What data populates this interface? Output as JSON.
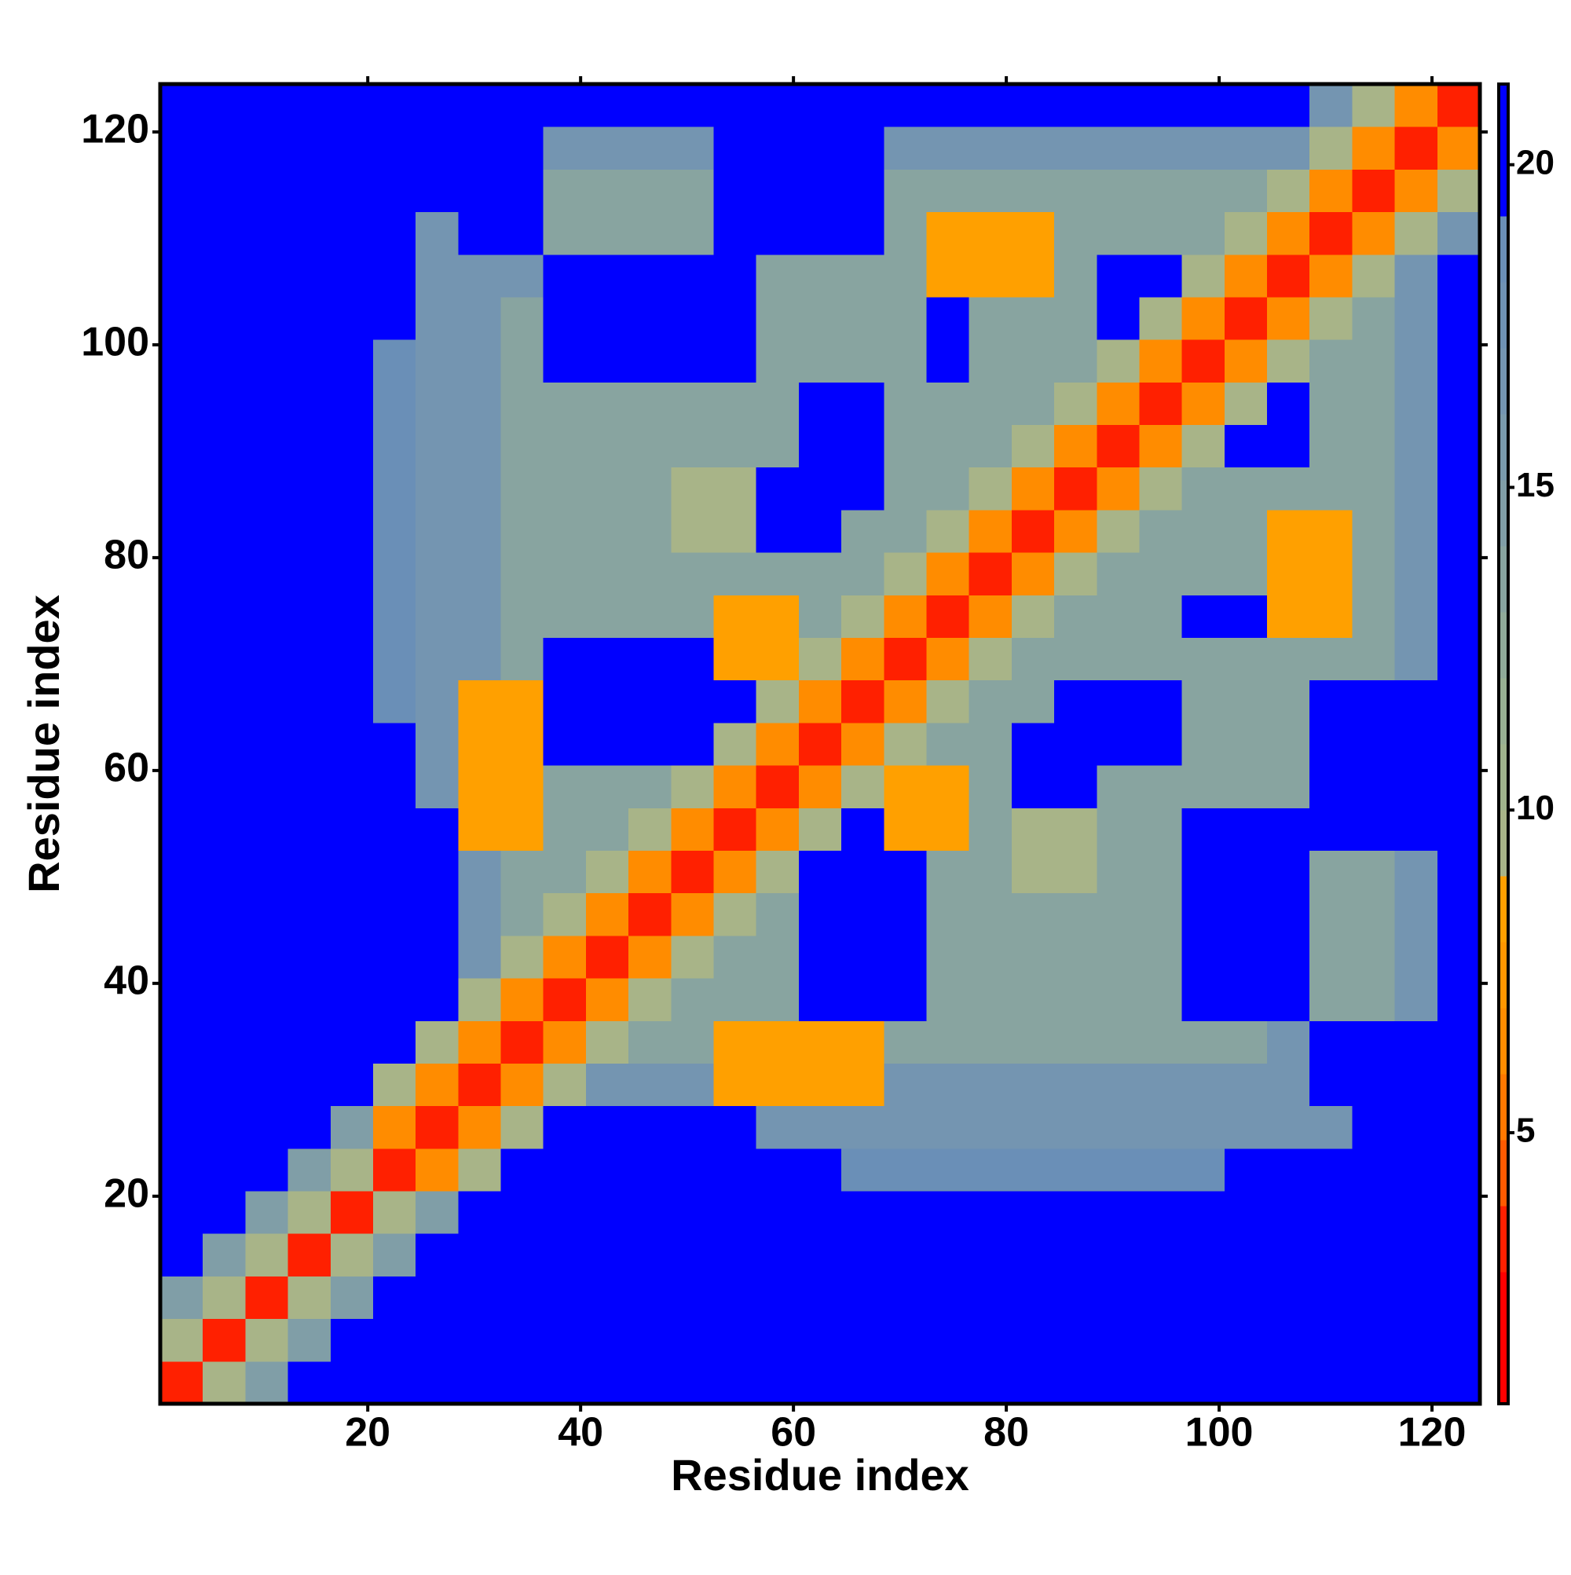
{
  "chart_data": {
    "type": "heatmap",
    "x_label": "Residue index",
    "y_label": "Residue index",
    "xlim": [
      0.5,
      124.5
    ],
    "ylim": [
      0.5,
      124.5
    ],
    "xticks": [
      20,
      40,
      60,
      80,
      100,
      120
    ],
    "yticks": [
      20,
      40,
      60,
      80,
      100,
      120
    ],
    "xbins": [
      0.5,
      4.5,
      8.5,
      12.5,
      16.5,
      20.5,
      24.5,
      28.5,
      32.5,
      36.5,
      40.5,
      44.5,
      48.5,
      52.5,
      56.5,
      60.5,
      64.5,
      68.5,
      72.5,
      76.5,
      80.5,
      84.5,
      88.5,
      92.5,
      96.5,
      100.5,
      104.5,
      108.5,
      112.5,
      116.5,
      120.5,
      124.5
    ],
    "ybins": [
      0.5,
      4.5,
      8.5,
      12.5,
      16.5,
      20.5,
      24.5,
      28.5,
      32.5,
      36.5,
      40.5,
      44.5,
      48.5,
      52.5,
      56.5,
      60.5,
      64.5,
      68.5,
      72.5,
      76.5,
      80.5,
      84.5,
      88.5,
      92.5,
      96.5,
      100.5,
      104.5,
      108.5,
      112.5,
      116.5,
      120.5,
      124.5
    ],
    "values": [
      [
        3,
        9,
        15,
        22,
        22,
        22,
        22,
        22,
        22,
        22,
        22,
        22,
        22,
        22,
        22,
        22,
        22,
        22,
        22,
        22,
        22,
        22,
        22,
        22,
        22,
        22,
        22,
        22,
        22,
        22,
        22
      ],
      [
        9,
        3,
        9,
        15,
        22,
        22,
        22,
        22,
        22,
        22,
        22,
        22,
        22,
        22,
        22,
        22,
        22,
        22,
        22,
        22,
        22,
        22,
        22,
        22,
        22,
        22,
        22,
        22,
        22,
        22,
        22
      ],
      [
        15,
        9,
        3,
        9,
        15,
        22,
        22,
        22,
        22,
        22,
        22,
        22,
        22,
        22,
        22,
        22,
        22,
        22,
        22,
        22,
        22,
        22,
        22,
        22,
        22,
        22,
        22,
        22,
        22,
        22,
        22
      ],
      [
        22,
        15,
        9,
        3,
        9,
        15,
        22,
        22,
        22,
        22,
        22,
        22,
        22,
        22,
        22,
        22,
        22,
        22,
        22,
        22,
        22,
        22,
        22,
        22,
        22,
        22,
        22,
        22,
        22,
        22,
        22
      ],
      [
        22,
        22,
        15,
        9,
        3,
        9,
        15,
        22,
        22,
        22,
        22,
        22,
        22,
        22,
        22,
        22,
        22,
        22,
        22,
        22,
        22,
        22,
        22,
        22,
        22,
        22,
        22,
        22,
        22,
        22,
        22
      ],
      [
        22,
        22,
        22,
        15,
        9,
        3,
        6,
        10,
        22,
        22,
        22,
        22,
        22,
        22,
        22,
        22,
        19,
        19,
        19,
        19,
        19,
        19,
        19,
        19,
        19,
        22,
        22,
        22,
        22,
        22,
        22
      ],
      [
        22,
        22,
        22,
        22,
        15,
        6,
        3,
        6,
        10,
        22,
        22,
        22,
        22,
        22,
        17,
        17,
        17,
        17,
        17,
        17,
        17,
        17,
        17,
        17,
        17,
        17,
        17,
        17,
        22,
        22,
        22
      ],
      [
        22,
        22,
        22,
        22,
        22,
        10,
        6,
        3,
        6,
        10,
        17,
        17,
        17,
        8,
        8,
        8,
        8,
        17,
        17,
        17,
        17,
        17,
        17,
        17,
        17,
        17,
        17,
        22,
        22,
        22,
        22
      ],
      [
        22,
        22,
        22,
        22,
        22,
        22,
        10,
        6,
        3,
        6,
        10,
        14,
        14,
        8,
        8,
        8,
        8,
        14,
        14,
        14,
        14,
        14,
        14,
        14,
        14,
        14,
        17,
        22,
        22,
        22,
        22
      ],
      [
        22,
        22,
        22,
        22,
        22,
        22,
        22,
        10,
        6,
        3,
        6,
        10,
        14,
        14,
        14,
        22,
        22,
        22,
        14,
        14,
        14,
        14,
        14,
        14,
        22,
        22,
        22,
        14,
        14,
        17,
        22
      ],
      [
        22,
        22,
        22,
        22,
        22,
        22,
        22,
        17,
        10,
        6,
        3,
        6,
        10,
        14,
        14,
        22,
        22,
        22,
        14,
        14,
        14,
        14,
        14,
        14,
        22,
        22,
        22,
        14,
        14,
        17,
        22
      ],
      [
        22,
        22,
        22,
        22,
        22,
        22,
        22,
        17,
        14,
        10,
        6,
        3,
        6,
        10,
        14,
        22,
        22,
        22,
        14,
        14,
        14,
        14,
        14,
        14,
        22,
        22,
        22,
        14,
        14,
        17,
        22
      ],
      [
        22,
        22,
        22,
        22,
        22,
        22,
        22,
        17,
        14,
        14,
        10,
        6,
        3,
        6,
        10,
        22,
        22,
        22,
        14,
        14,
        9,
        9,
        14,
        14,
        22,
        22,
        22,
        14,
        14,
        17,
        22
      ],
      [
        22,
        22,
        22,
        22,
        22,
        22,
        22,
        8,
        8,
        14,
        14,
        10,
        6,
        3,
        6,
        10,
        22,
        8,
        8,
        14,
        9,
        9,
        14,
        14,
        22,
        22,
        22,
        22,
        22,
        22,
        22
      ],
      [
        22,
        22,
        22,
        22,
        22,
        22,
        17,
        8,
        8,
        14,
        14,
        14,
        10,
        6,
        3,
        6,
        10,
        8,
        8,
        14,
        22,
        22,
        14,
        14,
        14,
        14,
        14,
        22,
        22,
        22,
        22
      ],
      [
        22,
        22,
        22,
        22,
        22,
        22,
        17,
        8,
        8,
        22,
        22,
        22,
        22,
        10,
        6,
        3,
        6,
        10,
        14,
        14,
        22,
        22,
        22,
        22,
        14,
        14,
        14,
        22,
        22,
        22,
        22
      ],
      [
        22,
        22,
        22,
        22,
        22,
        19,
        17,
        8,
        8,
        22,
        22,
        22,
        22,
        22,
        10,
        6,
        3,
        6,
        10,
        14,
        14,
        22,
        22,
        22,
        14,
        14,
        14,
        22,
        22,
        22,
        22
      ],
      [
        22,
        22,
        22,
        22,
        22,
        19,
        17,
        17,
        14,
        22,
        22,
        22,
        22,
        8,
        8,
        10,
        6,
        3,
        6,
        10,
        14,
        14,
        14,
        14,
        14,
        14,
        14,
        14,
        14,
        17,
        22
      ],
      [
        22,
        22,
        22,
        22,
        22,
        19,
        17,
        17,
        14,
        14,
        14,
        14,
        14,
        8,
        8,
        14,
        10,
        6,
        3,
        6,
        10,
        14,
        14,
        14,
        22,
        22,
        8,
        8,
        14,
        17,
        22
      ],
      [
        22,
        22,
        22,
        22,
        22,
        19,
        17,
        17,
        14,
        14,
        14,
        14,
        14,
        14,
        14,
        14,
        14,
        10,
        6,
        3,
        6,
        10,
        14,
        14,
        14,
        14,
        8,
        8,
        14,
        17,
        22
      ],
      [
        22,
        22,
        22,
        22,
        22,
        19,
        17,
        17,
        14,
        14,
        14,
        14,
        9,
        9,
        22,
        22,
        14,
        14,
        10,
        6,
        3,
        6,
        10,
        14,
        14,
        14,
        8,
        8,
        14,
        17,
        22
      ],
      [
        22,
        22,
        22,
        22,
        22,
        19,
        17,
        17,
        14,
        14,
        14,
        14,
        9,
        9,
        22,
        22,
        22,
        14,
        14,
        10,
        6,
        3,
        6,
        10,
        14,
        14,
        14,
        14,
        14,
        17,
        22
      ],
      [
        22,
        22,
        22,
        22,
        22,
        19,
        17,
        17,
        14,
        14,
        14,
        14,
        14,
        14,
        14,
        22,
        22,
        14,
        14,
        14,
        10,
        6,
        3,
        6,
        10,
        22,
        22,
        14,
        14,
        17,
        22
      ],
      [
        22,
        22,
        22,
        22,
        22,
        19,
        17,
        17,
        14,
        14,
        14,
        14,
        14,
        14,
        14,
        22,
        22,
        14,
        14,
        14,
        14,
        10,
        6,
        3,
        6,
        10,
        22,
        14,
        14,
        17,
        22
      ],
      [
        22,
        22,
        22,
        22,
        22,
        19,
        17,
        17,
        14,
        22,
        22,
        22,
        22,
        22,
        14,
        14,
        14,
        14,
        22,
        14,
        14,
        14,
        10,
        6,
        3,
        6,
        10,
        14,
        14,
        17,
        22
      ],
      [
        22,
        22,
        22,
        22,
        22,
        22,
        17,
        17,
        14,
        22,
        22,
        22,
        22,
        22,
        14,
        14,
        14,
        14,
        22,
        14,
        14,
        14,
        22,
        10,
        6,
        3,
        6,
        10,
        14,
        17,
        22
      ],
      [
        22,
        22,
        22,
        22,
        22,
        22,
        17,
        17,
        17,
        22,
        22,
        22,
        22,
        22,
        14,
        14,
        14,
        14,
        8,
        8,
        8,
        14,
        22,
        22,
        10,
        6,
        3,
        6,
        10,
        17,
        22
      ],
      [
        22,
        22,
        22,
        22,
        22,
        22,
        17,
        22,
        22,
        14,
        14,
        14,
        14,
        22,
        22,
        22,
        22,
        14,
        8,
        8,
        8,
        14,
        14,
        14,
        14,
        10,
        6,
        3,
        6,
        10,
        17
      ],
      [
        22,
        22,
        22,
        22,
        22,
        22,
        22,
        22,
        22,
        14,
        14,
        14,
        14,
        22,
        22,
        22,
        22,
        14,
        14,
        14,
        14,
        14,
        14,
        14,
        14,
        14,
        10,
        6,
        3,
        6,
        10
      ],
      [
        22,
        22,
        22,
        22,
        22,
        22,
        22,
        22,
        22,
        17,
        17,
        17,
        17,
        22,
        22,
        22,
        22,
        17,
        17,
        17,
        17,
        17,
        17,
        17,
        17,
        17,
        17,
        10,
        6,
        3,
        6
      ],
      [
        22,
        22,
        22,
        22,
        22,
        22,
        22,
        22,
        22,
        22,
        22,
        22,
        22,
        22,
        22,
        22,
        22,
        22,
        22,
        22,
        22,
        22,
        22,
        22,
        22,
        22,
        22,
        17,
        10,
        6,
        3
      ]
    ],
    "colorbar": {
      "clim": [
        0.8,
        21.25
      ],
      "ticks": [
        5,
        10,
        15,
        20
      ],
      "colors": [
        "#ff0000",
        "#ff0000",
        "#ff2000",
        "#ff5a00",
        "#ff7800",
        "#ff8c00",
        "#ff9600",
        "#ffa000",
        "#a8b488",
        "#9fb38c",
        "#98b092",
        "#90aa99",
        "#88a4a0",
        "#809ea7",
        "#7a9aac",
        "#7495b1",
        "#6f92b4",
        "#6a8fb7",
        "#0000ff",
        "#0000ff"
      ]
    }
  }
}
